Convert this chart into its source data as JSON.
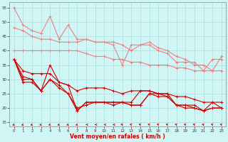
{
  "x": [
    0,
    1,
    2,
    3,
    4,
    5,
    6,
    7,
    8,
    9,
    10,
    11,
    12,
    13,
    14,
    15,
    16,
    17,
    18,
    19,
    20,
    21,
    22,
    23
  ],
  "line1": [
    55,
    49,
    47,
    46,
    52,
    44,
    49,
    44,
    44,
    43,
    43,
    42,
    35,
    42,
    42,
    42,
    40,
    39,
    36,
    36,
    36,
    33,
    37,
    37
  ],
  "line2": [
    48,
    47,
    45,
    44,
    44,
    43,
    43,
    43,
    44,
    43,
    43,
    43,
    42,
    40,
    42,
    43,
    41,
    40,
    38,
    37,
    35,
    35,
    33,
    38
  ],
  "line3": [
    40,
    40,
    40,
    40,
    40,
    40,
    40,
    40,
    39,
    38,
    38,
    37,
    37,
    36,
    36,
    35,
    35,
    35,
    34,
    34,
    33,
    33,
    33,
    33
  ],
  "line4": [
    37,
    33,
    32,
    32,
    32,
    29,
    28,
    26,
    27,
    27,
    27,
    26,
    25,
    26,
    26,
    26,
    25,
    25,
    24,
    24,
    23,
    22,
    22,
    22
  ],
  "line5": [
    37,
    31,
    30,
    26,
    35,
    29,
    28,
    19,
    22,
    22,
    22,
    22,
    22,
    22,
    26,
    26,
    25,
    25,
    21,
    21,
    21,
    19,
    22,
    20
  ],
  "line6": [
    37,
    30,
    30,
    26,
    30,
    28,
    25,
    19,
    22,
    22,
    22,
    22,
    22,
    21,
    21,
    25,
    25,
    24,
    21,
    21,
    20,
    19,
    20,
    20
  ],
  "line7": [
    37,
    29,
    29,
    26,
    30,
    27,
    25,
    20,
    21,
    22,
    22,
    21,
    22,
    21,
    21,
    25,
    24,
    24,
    21,
    20,
    20,
    19,
    20,
    20
  ],
  "color_light": "#f08080",
  "color_dark": "#cc0000",
  "bg_color": "#cff5f5",
  "grid_color": "#aadddd",
  "xlabel": "Vent moyen/en rafales ( km/h )",
  "xlabel_color": "#cc0000",
  "yticks": [
    15,
    20,
    25,
    30,
    35,
    40,
    45,
    50,
    55
  ],
  "xticks": [
    0,
    1,
    2,
    3,
    4,
    5,
    6,
    7,
    8,
    9,
    10,
    11,
    12,
    13,
    14,
    15,
    16,
    17,
    18,
    19,
    20,
    21,
    22,
    23
  ],
  "ylim": [
    13.5,
    57
  ],
  "xlim": [
    -0.5,
    23.5
  ],
  "arrow_angles": [
    225,
    225,
    225,
    225,
    225,
    225,
    225,
    225,
    270,
    270,
    270,
    270,
    315,
    315,
    315,
    315,
    315,
    315,
    315,
    315,
    315,
    315,
    315,
    315
  ]
}
